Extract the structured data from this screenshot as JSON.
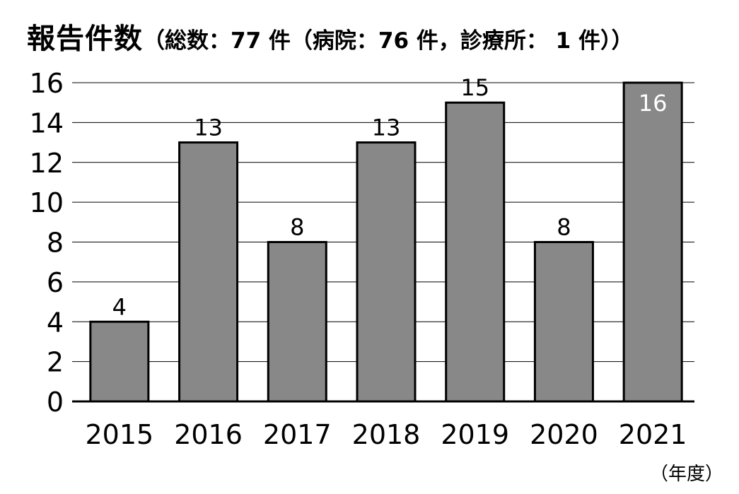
{
  "chart_data": {
    "type": "bar",
    "title": "報告件数",
    "subtitle": "（総数：77 件（病院：76 件，診療所： 1 件））",
    "categories": [
      "2015",
      "2016",
      "2017",
      "2018",
      "2019",
      "2020",
      "2021"
    ],
    "values": [
      4,
      13,
      8,
      13,
      15,
      8,
      16
    ],
    "xlabel": "（年度）",
    "ylabel": "",
    "ylim": [
      0,
      16
    ],
    "yticks": [
      0,
      2,
      4,
      6,
      8,
      10,
      12,
      14,
      16
    ],
    "grid": true,
    "bar_color": "#888888",
    "data_labels": true
  }
}
